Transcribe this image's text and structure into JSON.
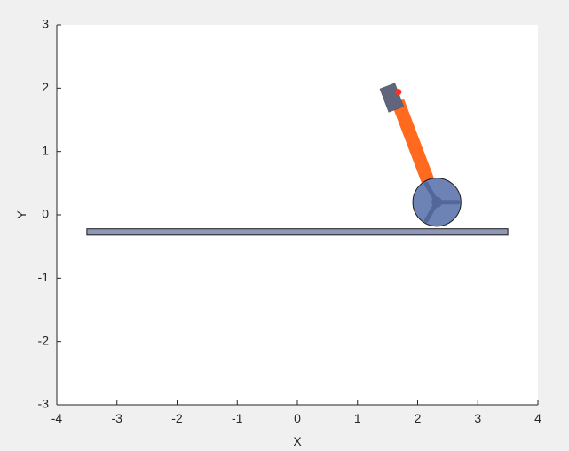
{
  "figure": {
    "background": "#f0f0f0",
    "axes_background": "#ffffff",
    "axis_color": "#262626"
  },
  "chart_data": {
    "type": "scatter",
    "xlabel": "X",
    "ylabel": "Y",
    "xlim": [
      -4,
      4
    ],
    "ylim": [
      -3,
      3
    ],
    "xticks": [
      -4,
      -3,
      -2,
      -1,
      0,
      1,
      2,
      3,
      4
    ],
    "yticks": [
      -3,
      -2,
      -1,
      0,
      1,
      2,
      3
    ],
    "grid": false,
    "ground": {
      "x": [
        -3.5,
        3.5
      ],
      "y": [
        -0.32,
        -0.22
      ],
      "color": "#8f98b6"
    },
    "wheel": {
      "center": [
        2.32,
        0.2
      ],
      "radius": 0.4,
      "color": "#6e83b5",
      "spoke_color": "#53679a",
      "spoke_angles_deg": [
        0,
        120,
        240
      ]
    },
    "arm": {
      "start": [
        2.25,
        0.34
      ],
      "end": [
        1.67,
        1.79
      ],
      "color": "#ff6a1f"
    },
    "end_effector": {
      "center": [
        1.57,
        1.85
      ],
      "color": "#60657c"
    },
    "tip_marker": {
      "center": [
        1.68,
        1.94
      ],
      "color": "#ff2e1f"
    }
  }
}
